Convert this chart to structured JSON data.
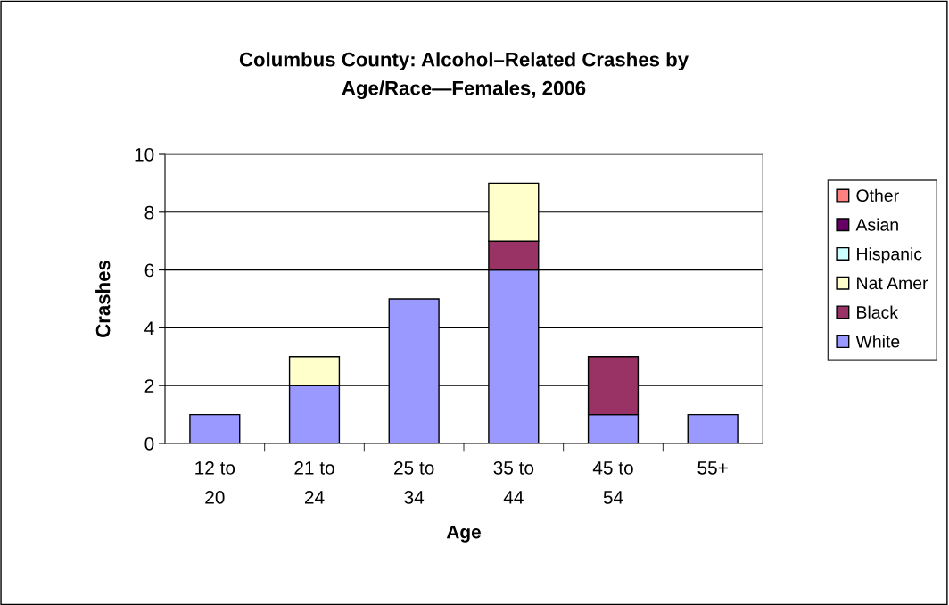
{
  "chart_data": {
    "type": "bar",
    "stacked": true,
    "title": "Columbus County: Alcohol–Related Crashes by\nAge/Race—Females, 2006",
    "xlabel": "Age",
    "ylabel": "Crashes",
    "categories": [
      "12 to 20",
      "21 to 24",
      "25 to 34",
      "35 to 44",
      "45 to 54",
      "55+"
    ],
    "series": [
      {
        "name": "White",
        "color": "#9999ff",
        "values": [
          1,
          2,
          5,
          6,
          1,
          1
        ]
      },
      {
        "name": "Black",
        "color": "#993366",
        "values": [
          null,
          null,
          null,
          1,
          2,
          null
        ]
      },
      {
        "name": "Nat Amer",
        "color": "#ffffcc",
        "values": [
          null,
          1,
          null,
          2,
          null,
          null
        ]
      },
      {
        "name": "Hispanic",
        "color": "#ccffff",
        "values": [
          null,
          null,
          null,
          null,
          null,
          null
        ]
      },
      {
        "name": "Asian",
        "color": "#660066",
        "values": [
          null,
          null,
          null,
          null,
          null,
          null
        ]
      },
      {
        "name": "Other",
        "color": "#ff8080",
        "values": [
          null,
          null,
          null,
          null,
          null,
          null
        ]
      }
    ],
    "ylim": [
      0,
      10
    ],
    "yticks": [
      0,
      2,
      4,
      6,
      8,
      10
    ],
    "grid": "y",
    "legend": "right"
  }
}
